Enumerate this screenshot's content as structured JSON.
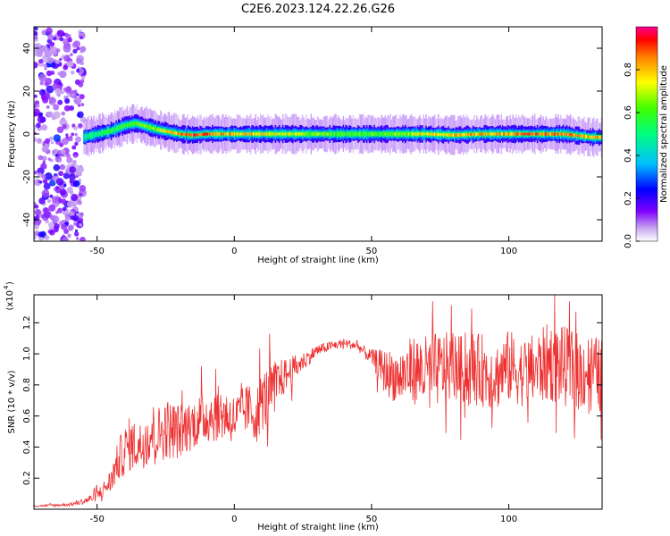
{
  "chart_data": [
    {
      "type": "heatmap",
      "title": "C2E6.2023.124.22.26.G26",
      "xlabel": "Height of straight line (km)",
      "ylabel": "Frequency (Hz)",
      "xlim": [
        -73,
        134
      ],
      "ylim": [
        -50,
        50
      ],
      "xticks": [
        -50,
        0,
        50,
        100
      ],
      "yticks": [
        -40,
        -20,
        0,
        20,
        40
      ],
      "colorbar": {
        "label": "Normalized spectral amplitude",
        "range": [
          0,
          1
        ],
        "ticks": [
          "0.0",
          "0.2",
          "0.4",
          "0.6",
          "0.8"
        ]
      },
      "ridge": {
        "x": [
          -55,
          -50,
          -45,
          -40,
          -36,
          -32,
          -28,
          -24,
          -20,
          -15,
          -10,
          0,
          10,
          20,
          30,
          40,
          50,
          60,
          70,
          80,
          90,
          100,
          110,
          120,
          130,
          134
        ],
        "y": [
          -1.5,
          0,
          1.5,
          4,
          5,
          3.5,
          2,
          1,
          0,
          -0.5,
          0,
          0,
          0,
          0,
          0,
          0,
          0,
          0,
          0,
          -0.5,
          0,
          0,
          0,
          0,
          -1.5,
          -1.5
        ],
        "peak_amplitude": [
          0.45,
          0.5,
          0.55,
          0.6,
          0.6,
          0.65,
          0.7,
          0.75,
          0.85,
          0.9,
          0.85,
          0.8,
          0.75,
          0.7,
          0.65,
          0.6,
          0.62,
          0.65,
          0.75,
          0.8,
          0.8,
          0.82,
          0.85,
          0.85,
          0.8,
          0.8
        ]
      },
      "noise_region_x": [
        -73,
        -55
      ],
      "colors": {
        "low": "#c8a8f0",
        "mid": "#00d000",
        "high": "#ff0000"
      }
    },
    {
      "type": "line",
      "xlabel": "Height of straight line (km)",
      "ylabel": "SNR (10 * v/v)",
      "y_multiplier_label": "(x10",
      "y_multiplier_exp": "4",
      "xlim": [
        -73,
        134
      ],
      "ylim": [
        0,
        1.38
      ],
      "xticks": [
        -50,
        0,
        50,
        100
      ],
      "yticks": [
        "0.2",
        "0.4",
        "0.6",
        "0.8",
        "1.0",
        "1.2"
      ],
      "series": [
        {
          "color": "#ee3030",
          "x": [
            -73,
            -60,
            -55,
            -52,
            -50,
            -48,
            -45,
            -43,
            -41,
            -38,
            -35,
            -32,
            -30,
            -28,
            -25,
            -20,
            -15,
            -10,
            -5,
            0,
            5,
            8,
            10,
            12,
            15,
            18,
            20,
            25,
            30,
            35,
            40,
            45,
            48,
            50,
            55,
            60,
            65,
            70,
            75,
            80,
            85,
            90,
            95,
            100,
            105,
            110,
            115,
            120,
            125,
            130,
            134
          ],
          "y": [
            0.02,
            0.03,
            0.05,
            0.07,
            0.09,
            0.12,
            0.18,
            0.28,
            0.35,
            0.42,
            0.4,
            0.45,
            0.5,
            0.48,
            0.52,
            0.5,
            0.55,
            0.6,
            0.62,
            0.58,
            0.65,
            0.6,
            0.7,
            0.72,
            0.8,
            0.85,
            0.88,
            0.95,
            1.02,
            1.05,
            1.07,
            1.05,
            1.0,
            0.98,
            0.88,
            0.85,
            0.9,
            0.88,
            0.9,
            0.92,
            0.88,
            0.9,
            0.85,
            0.92,
            0.88,
            0.9,
            0.95,
            0.92,
            0.88,
            0.9,
            0.85
          ],
          "noise_amplitude": [
            0.005,
            0.01,
            0.02,
            0.03,
            0.04,
            0.05,
            0.08,
            0.12,
            0.15,
            0.18,
            0.15,
            0.18,
            0.2,
            0.18,
            0.2,
            0.18,
            0.16,
            0.18,
            0.18,
            0.16,
            0.16,
            0.18,
            0.2,
            0.2,
            0.16,
            0.12,
            0.1,
            0.06,
            0.04,
            0.03,
            0.03,
            0.03,
            0.04,
            0.05,
            0.15,
            0.18,
            0.22,
            0.24,
            0.24,
            0.22,
            0.22,
            0.24,
            0.22,
            0.24,
            0.22,
            0.24,
            0.26,
            0.26,
            0.26,
            0.24,
            0.24
          ]
        }
      ]
    }
  ]
}
